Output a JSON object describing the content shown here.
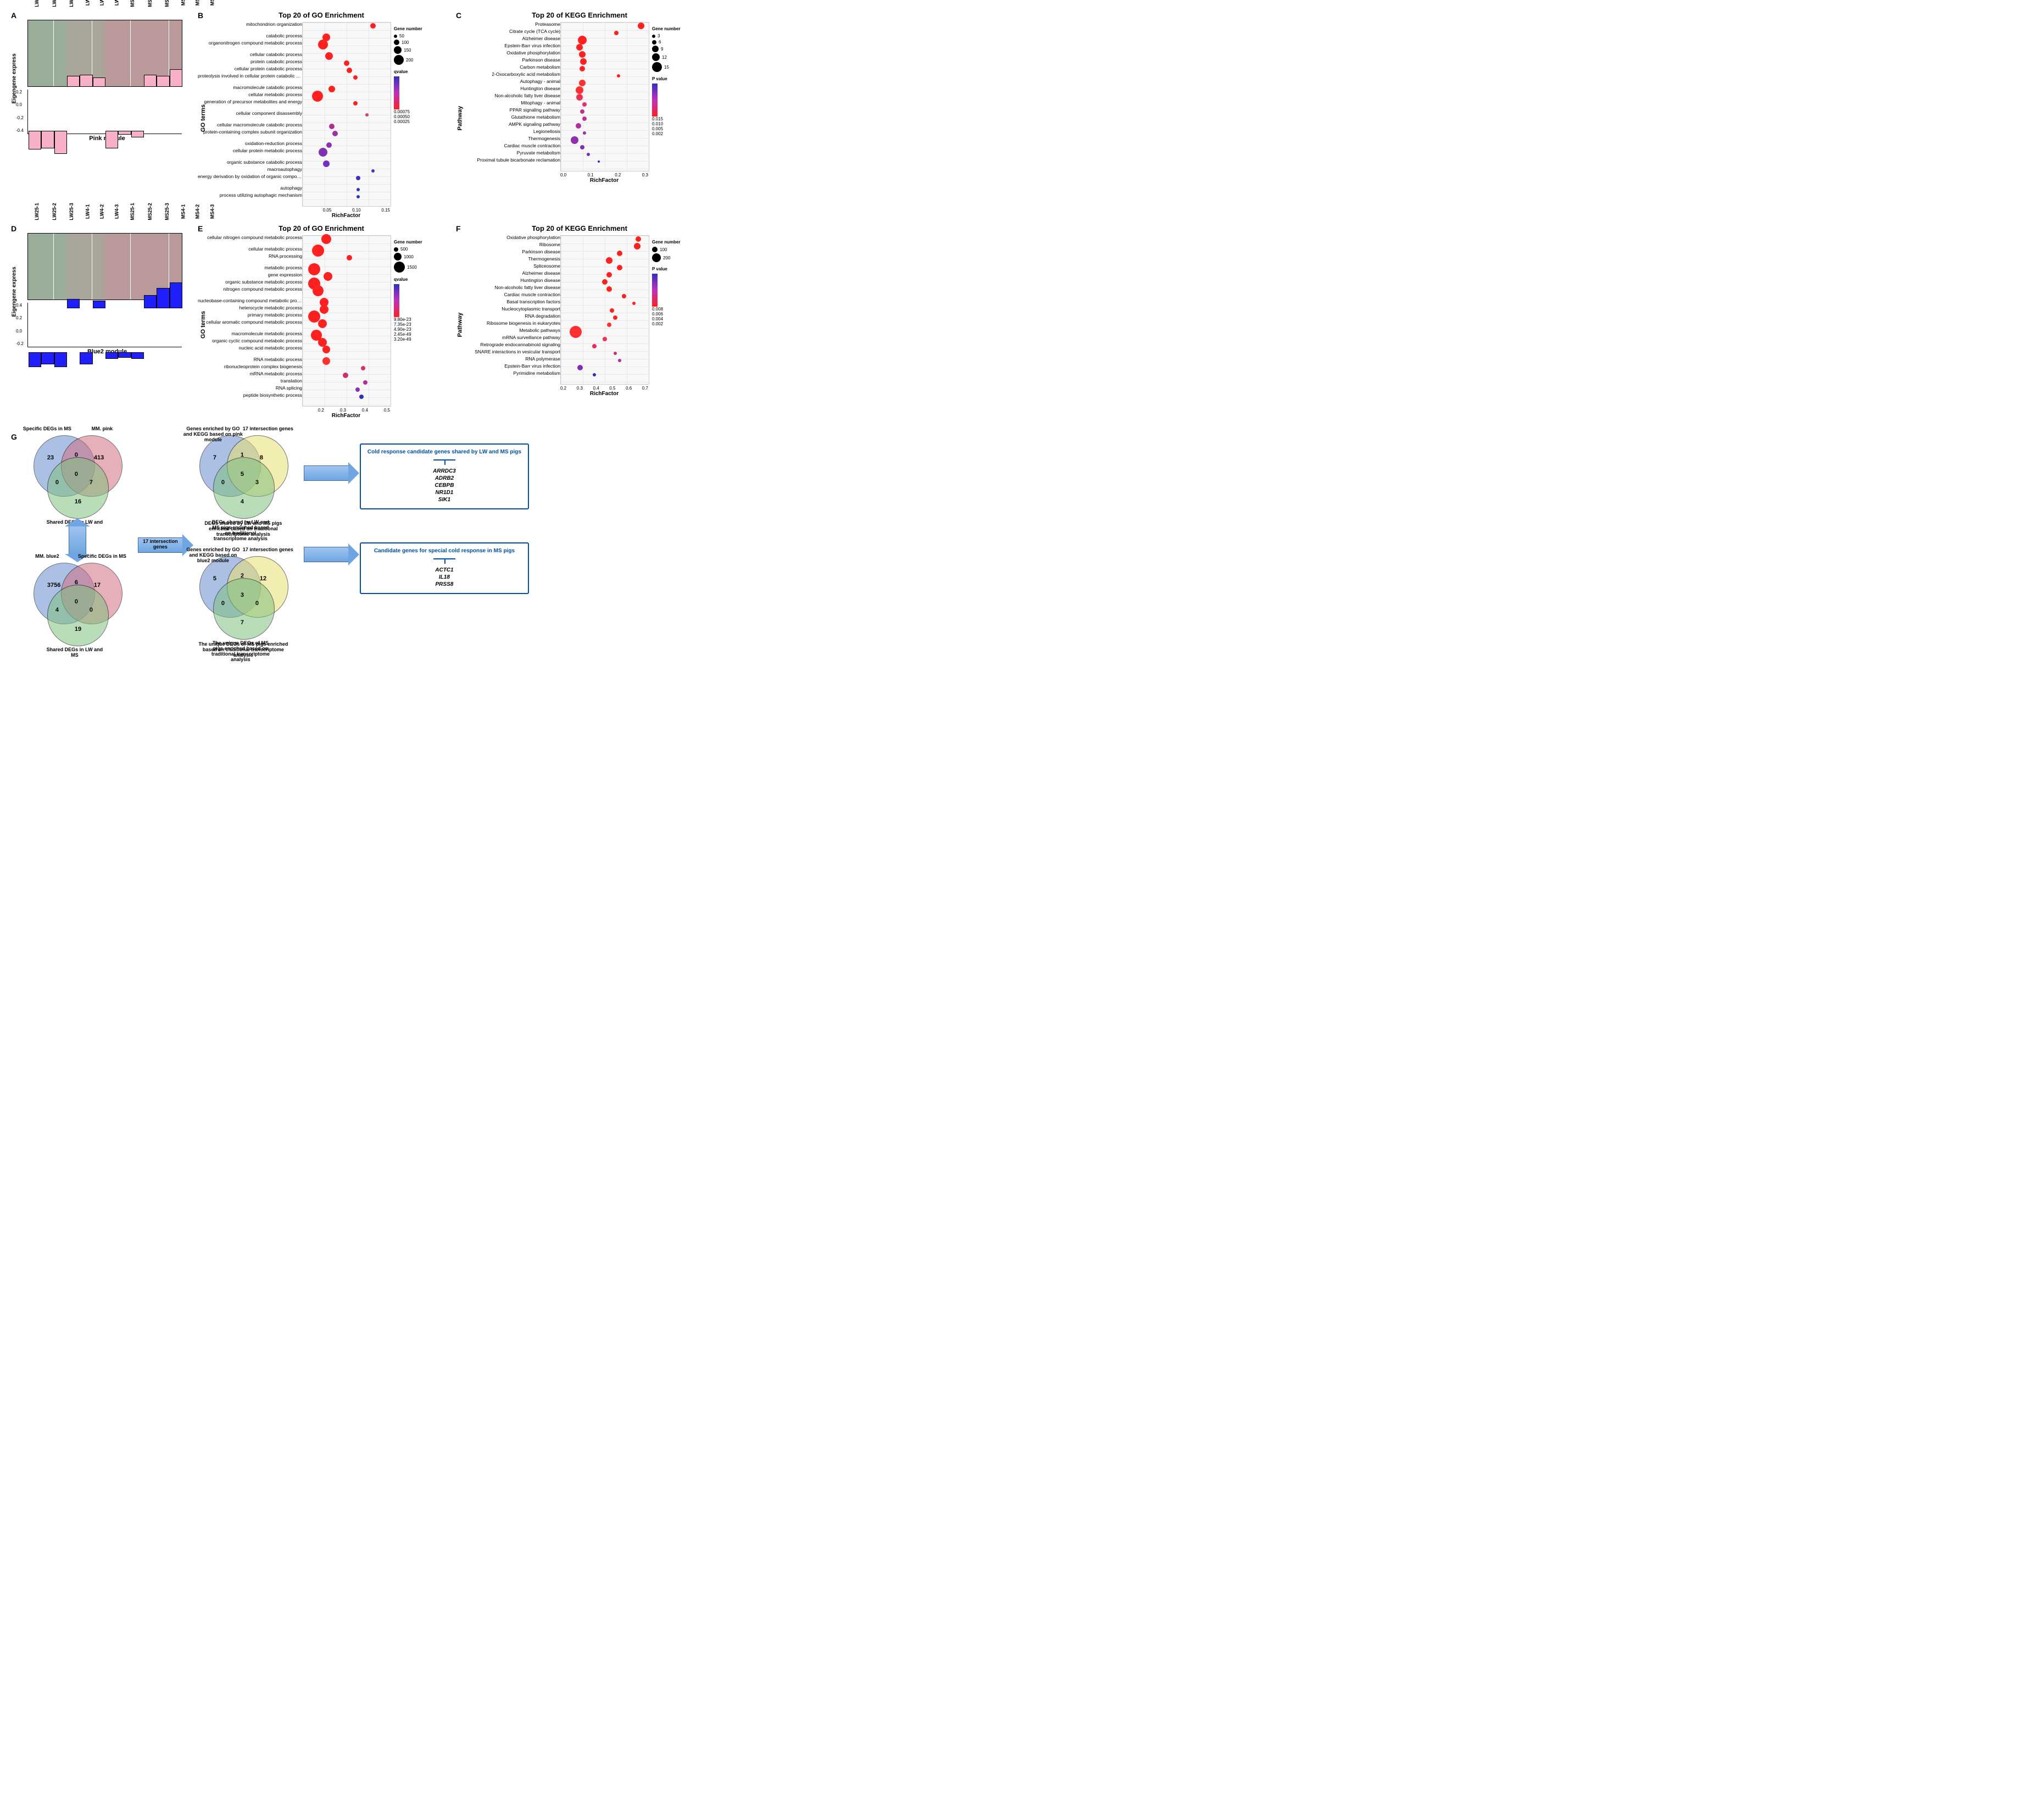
{
  "samples": [
    "LW25-1",
    "LW25-2",
    "LW25-3",
    "LW4-1",
    "LW4-2",
    "LW4-3",
    "MS25-1",
    "MS25-2",
    "MS25-3",
    "MS4-1",
    "MS4-2",
    "MS4-3"
  ],
  "panelA": {
    "label": "A",
    "module_name": "Pink module",
    "heatmap_gradient": "green-black-red",
    "eigen": {
      "ylabel": "Eigengene express",
      "yticks": [
        "-0.4",
        "-0.2",
        "0.0",
        "0.2"
      ],
      "ylim": [
        -0.45,
        0.35
      ],
      "bar_color": "#f8b0c8",
      "values": [
        -0.32,
        -0.3,
        -0.4,
        0.18,
        0.2,
        0.15,
        -0.3,
        -0.05,
        -0.1,
        0.2,
        0.18,
        0.3
      ]
    }
  },
  "panelD": {
    "label": "D",
    "module_name": "Blue2 module",
    "heatmap_gradient": "green-black-red",
    "eigen": {
      "ylabel": "Eigengene express",
      "yticks": [
        "-0.2",
        "0.0",
        "0.2",
        "0.4"
      ],
      "ylim": [
        -0.3,
        0.5
      ],
      "bar_color": "#2020ff",
      "values": [
        -0.25,
        -0.2,
        -0.25,
        0.15,
        -0.2,
        0.12,
        -0.1,
        -0.08,
        -0.1,
        0.22,
        0.35,
        0.45
      ]
    }
  },
  "panelB": {
    "label": "B",
    "title": "Top 20 of GO Enrichment",
    "axis_label": "GO terms",
    "xlabel": "RichFactor",
    "xlim": [
      0,
      0.15
    ],
    "xticks": [
      "",
      "0.05",
      "0.10",
      "0.15"
    ],
    "size_legend": {
      "title": "Gene number",
      "items": [
        {
          "v": "50",
          "s": 3
        },
        {
          "v": "100",
          "s": 5
        },
        {
          "v": "150",
          "s": 7
        },
        {
          "v": "200",
          "s": 9
        }
      ]
    },
    "color_legend": {
      "title": "qvalue",
      "items": [
        "0.00075",
        "0.00050",
        "0.00025"
      ]
    },
    "color_low": "#3030c0",
    "color_high": "#ff2020",
    "terms": [
      {
        "name": "mitochondrion organization",
        "rf": 0.12,
        "size": 5,
        "col": "#ff2020",
        "gap_after": true
      },
      {
        "name": "catabolic process",
        "rf": 0.04,
        "size": 7,
        "col": "#ff2020"
      },
      {
        "name": "organonitrogen compound metabolic process",
        "rf": 0.035,
        "size": 9,
        "col": "#ff2020",
        "gap_after": true
      },
      {
        "name": "cellular catabolic process",
        "rf": 0.045,
        "size": 7,
        "col": "#ff2020"
      },
      {
        "name": "protein catabolic process",
        "rf": 0.075,
        "size": 5,
        "col": "#ff2020"
      },
      {
        "name": "cellular protein catabolic process",
        "rf": 0.08,
        "size": 5,
        "col": "#ff2020"
      },
      {
        "name": "proteolysis involved in cellular protein catabolic process",
        "rf": 0.09,
        "size": 4,
        "col": "#ff2020",
        "gap_after": true
      },
      {
        "name": "macromolecule catabolic process",
        "rf": 0.05,
        "size": 6,
        "col": "#ff2020"
      },
      {
        "name": "cellular metabolic process",
        "rf": 0.025,
        "size": 10,
        "col": "#ff2020"
      },
      {
        "name": "generation of precursor metabolites and energy",
        "rf": 0.09,
        "size": 4,
        "col": "#ff2020",
        "gap_after": true
      },
      {
        "name": "cellular component disassembly",
        "rf": 0.11,
        "size": 3,
        "col": "#d04070",
        "gap_after": true
      },
      {
        "name": "cellular macromolecule catabolic process",
        "rf": 0.05,
        "size": 5,
        "col": "#b03090"
      },
      {
        "name": "protein-containing complex subunit organization",
        "rf": 0.055,
        "size": 5,
        "col": "#a030a0",
        "gap_after": true
      },
      {
        "name": "oxidation-reduction process",
        "rf": 0.045,
        "size": 5,
        "col": "#9030b0"
      },
      {
        "name": "cellular protein metabolic process",
        "rf": 0.035,
        "size": 8,
        "col": "#8030b0",
        "gap_after": true
      },
      {
        "name": "organic substance catabolic process",
        "rf": 0.04,
        "size": 6,
        "col": "#7030c0"
      },
      {
        "name": "macroautophagy",
        "rf": 0.12,
        "size": 3,
        "col": "#5030c0"
      },
      {
        "name": "energy derivation by oxidation of organic compounds",
        "rf": 0.095,
        "size": 4,
        "col": "#4030c0",
        "gap_after": true
      },
      {
        "name": "autophagy",
        "rf": 0.095,
        "size": 3,
        "col": "#3030c0"
      },
      {
        "name": "process utilizing autophagic mechanism",
        "rf": 0.095,
        "size": 3,
        "col": "#3030c0"
      }
    ]
  },
  "panelC": {
    "label": "C",
    "title": "Top 20 of KEGG Enrichment",
    "axis_label": "Pathway",
    "xlabel": "RichFactor",
    "xlim": [
      0,
      0.35
    ],
    "xticks": [
      "0.0",
      "0.1",
      "0.2",
      "0.3"
    ],
    "size_legend": {
      "title": "Gene number",
      "items": [
        {
          "v": "3",
          "s": 3
        },
        {
          "v": "6",
          "s": 4
        },
        {
          "v": "9",
          "s": 6
        },
        {
          "v": "12",
          "s": 7
        },
        {
          "v": "15",
          "s": 9
        }
      ]
    },
    "color_legend": {
      "title": "P value",
      "items": [
        "0.015",
        "0.010",
        "0.005",
        "0.002"
      ]
    },
    "color_low": "#3030c0",
    "color_high": "#ff2020",
    "terms": [
      {
        "name": "Proteasome",
        "rf": 0.32,
        "size": 6,
        "col": "#ff2020"
      },
      {
        "name": "Citrate cycle (TCA cycle)",
        "rf": 0.22,
        "size": 4,
        "col": "#ff2020"
      },
      {
        "name": "Alzheimer disease",
        "rf": 0.085,
        "size": 8,
        "col": "#ff2020"
      },
      {
        "name": "Epstein-Barr virus infection",
        "rf": 0.075,
        "size": 6,
        "col": "#ff2020"
      },
      {
        "name": "Oxidative phosphorylation",
        "rf": 0.085,
        "size": 6,
        "col": "#ff2020"
      },
      {
        "name": "Parkinson disease",
        "rf": 0.09,
        "size": 6,
        "col": "#ff2020"
      },
      {
        "name": "Carbon metabolism",
        "rf": 0.085,
        "size": 5,
        "col": "#ff2020"
      },
      {
        "name": "2-Oxocarboxylic acid metabolism",
        "rf": 0.23,
        "size": 3,
        "col": "#ff2020"
      },
      {
        "name": "Autophagy - animal",
        "rf": 0.085,
        "size": 6,
        "col": "#ff3030"
      },
      {
        "name": "Huntington disease",
        "rf": 0.075,
        "size": 7,
        "col": "#ff3030"
      },
      {
        "name": "Non-alcoholic fatty liver disease",
        "rf": 0.075,
        "size": 6,
        "col": "#f03050"
      },
      {
        "name": "Mitophagy - animal",
        "rf": 0.095,
        "size": 4,
        "col": "#e03070"
      },
      {
        "name": "PPAR signaling pathway",
        "rf": 0.085,
        "size": 4,
        "col": "#c03090"
      },
      {
        "name": "Glutathione metabolism",
        "rf": 0.095,
        "size": 4,
        "col": "#c03090"
      },
      {
        "name": "AMPK signaling pathway",
        "rf": 0.07,
        "size": 5,
        "col": "#b030a0"
      },
      {
        "name": "Legionellosis",
        "rf": 0.095,
        "size": 3,
        "col": "#a030a0"
      },
      {
        "name": "Thermogenesis",
        "rf": 0.055,
        "size": 7,
        "col": "#9030b0"
      },
      {
        "name": "Cardiac muscle contraction",
        "rf": 0.085,
        "size": 4,
        "col": "#8030b0"
      },
      {
        "name": "Pyruvate metabolism",
        "rf": 0.11,
        "size": 3,
        "col": "#7030c0"
      },
      {
        "name": "Proximal tubule bicarbonate reclamation",
        "rf": 0.15,
        "size": 2,
        "col": "#3030c0"
      }
    ]
  },
  "panelE": {
    "label": "E",
    "title": "Top 20 of GO Enrichment",
    "axis_label": "GO terms",
    "xlabel": "RichFactor",
    "xlim": [
      0.1,
      0.55
    ],
    "xticks": [
      "",
      "0.2",
      "0.3",
      "0.4",
      "0.5"
    ],
    "size_legend": {
      "title": "Gene number",
      "items": [
        {
          "v": "500",
          "s": 4
        },
        {
          "v": "1000",
          "s": 7
        },
        {
          "v": "1500",
          "s": 10
        }
      ]
    },
    "color_legend": {
      "title": "qvalue",
      "items": [
        "9.80e-23",
        "7.35e-23",
        "4.90e-23",
        "2.45e-49",
        "3.20e-49"
      ]
    },
    "color_low": "#3030c0",
    "color_high": "#ff2020",
    "terms": [
      {
        "name": "cellular nitrogen compound metabolic process",
        "rf": 0.22,
        "size": 9,
        "col": "#ff2020",
        "gap_after": true
      },
      {
        "name": "cellular metabolic process",
        "rf": 0.18,
        "size": 11,
        "col": "#ff2020"
      },
      {
        "name": "RNA processing",
        "rf": 0.34,
        "size": 5,
        "col": "#ff2020",
        "gap_after": true
      },
      {
        "name": "metabolic process",
        "rf": 0.16,
        "size": 11,
        "col": "#ff2020"
      },
      {
        "name": "gene expression",
        "rf": 0.23,
        "size": 8,
        "col": "#ff2020"
      },
      {
        "name": "organic substance metabolic process",
        "rf": 0.16,
        "size": 11,
        "col": "#ff2020"
      },
      {
        "name": "nitrogen compound metabolic process",
        "rf": 0.18,
        "size": 10,
        "col": "#ff2020",
        "gap_after": true
      },
      {
        "name": "nucleobase-containing compound metabolic process",
        "rf": 0.21,
        "size": 8,
        "col": "#ff2020"
      },
      {
        "name": "heterocycle metabolic process",
        "rf": 0.21,
        "size": 8,
        "col": "#ff2020"
      },
      {
        "name": "primary metabolic process",
        "rf": 0.16,
        "size": 11,
        "col": "#ff2020"
      },
      {
        "name": "cellular aromatic compound metabolic process",
        "rf": 0.2,
        "size": 8,
        "col": "#ff2020",
        "gap_after": true
      },
      {
        "name": "macromolecule metabolic process",
        "rf": 0.17,
        "size": 10,
        "col": "#ff2020"
      },
      {
        "name": "organic cyclic compound metabolic process",
        "rf": 0.2,
        "size": 8,
        "col": "#ff2020"
      },
      {
        "name": "nucleic acid metabolic process",
        "rf": 0.22,
        "size": 7,
        "col": "#ff2020",
        "gap_after": true
      },
      {
        "name": "RNA metabolic process",
        "rf": 0.22,
        "size": 7,
        "col": "#ff3030"
      },
      {
        "name": "ribonucleoprotein complex biogenesis",
        "rf": 0.41,
        "size": 4,
        "col": "#e03060"
      },
      {
        "name": "mRNA metabolic process",
        "rf": 0.32,
        "size": 5,
        "col": "#d03070"
      },
      {
        "name": "translation",
        "rf": 0.42,
        "size": 4,
        "col": "#b03090"
      },
      {
        "name": "RNA splicing",
        "rf": 0.38,
        "size": 4,
        "col": "#9030b0"
      },
      {
        "name": "peptide biosynthetic process",
        "rf": 0.4,
        "size": 4,
        "col": "#3030c0"
      }
    ]
  },
  "panelF": {
    "label": "F",
    "title": "Top 20 of KEGG Enrichment",
    "axis_label": "Pathway",
    "xlabel": "RichFactor",
    "xlim": [
      0.15,
      0.75
    ],
    "xticks": [
      "0.2",
      "0.3",
      "0.4",
      "0.5",
      "0.6",
      "0.7"
    ],
    "size_legend": {
      "title": "Gene number",
      "items": [
        {
          "v": "100",
          "s": 5
        },
        {
          "v": "200",
          "s": 8
        }
      ]
    },
    "color_legend": {
      "title": "P value",
      "items": [
        "0.008",
        "0.006",
        "0.004",
        "0.002"
      ]
    },
    "color_low": "#3030c0",
    "color_high": "#ff2020",
    "terms": [
      {
        "name": "Oxidative phosphorylation",
        "rf": 0.68,
        "size": 5,
        "col": "#ff2020"
      },
      {
        "name": "Ribosome",
        "rf": 0.67,
        "size": 6,
        "col": "#ff2020"
      },
      {
        "name": "Parkinson disease",
        "rf": 0.55,
        "size": 5,
        "col": "#ff2020"
      },
      {
        "name": "Thermogenesis",
        "rf": 0.48,
        "size": 6,
        "col": "#ff2020"
      },
      {
        "name": "Spliceosome",
        "rf": 0.55,
        "size": 5,
        "col": "#ff2020"
      },
      {
        "name": "Alzheimer disease",
        "rf": 0.48,
        "size": 5,
        "col": "#ff2020"
      },
      {
        "name": "Huntington disease",
        "rf": 0.45,
        "size": 5,
        "col": "#ff2020"
      },
      {
        "name": "Non-alcoholic fatty liver disease",
        "rf": 0.48,
        "size": 5,
        "col": "#ff2020"
      },
      {
        "name": "Cardiac muscle contraction",
        "rf": 0.58,
        "size": 4,
        "col": "#ff2020"
      },
      {
        "name": "Basal transcription factors",
        "rf": 0.65,
        "size": 3,
        "col": "#ff2020"
      },
      {
        "name": "Nucleocytoplasmic transport",
        "rf": 0.5,
        "size": 4,
        "col": "#ff2020"
      },
      {
        "name": "RNA degradation",
        "rf": 0.52,
        "size": 4,
        "col": "#ff2020"
      },
      {
        "name": "Ribosome biogenesis in eukaryotes",
        "rf": 0.48,
        "size": 4,
        "col": "#ff3030"
      },
      {
        "name": "Metabolic pathways",
        "rf": 0.25,
        "size": 11,
        "col": "#ff3030"
      },
      {
        "name": "mRNA surveillance pathway",
        "rf": 0.45,
        "size": 4,
        "col": "#f03050"
      },
      {
        "name": "Retrograde endocannabinoid signaling",
        "rf": 0.38,
        "size": 4,
        "col": "#e03060"
      },
      {
        "name": "SNARE interactions in vesicular transport",
        "rf": 0.52,
        "size": 3,
        "col": "#d03070"
      },
      {
        "name": "RNA polymerase",
        "rf": 0.55,
        "size": 3,
        "col": "#b03090"
      },
      {
        "name": "Epstein-Barr virus infection",
        "rf": 0.28,
        "size": 5,
        "col": "#8030b0"
      },
      {
        "name": "Pyrimidine metabolism",
        "rf": 0.38,
        "size": 3,
        "col": "#3030c0"
      }
    ]
  },
  "panelG": {
    "label": "G",
    "venn_top": {
      "labels": {
        "a": "Specific DEGs in MS",
        "b": "MM. pink",
        "c": "Shared DEGs in LW and MS"
      },
      "colors": {
        "a": "#6a8ed0",
        "b": "#d07080",
        "c": "#80c080"
      },
      "counts": {
        "a": 23,
        "b": 413,
        "ab": 0,
        "c": 16,
        "ac": 0,
        "bc": 7,
        "abc": 0
      }
    },
    "venn_bottom": {
      "labels": {
        "a": "MM. blue2",
        "b": "Specific DEGs in MS",
        "c": "Shared DEGs in LW and MS"
      },
      "colors": {
        "a": "#6a8ed0",
        "b": "#d07080",
        "c": "#80c080"
      },
      "counts": {
        "a": 3756,
        "b": 17,
        "ab": 6,
        "c": 19,
        "ac": 4,
        "bc": 0,
        "abc": 0
      }
    },
    "arrow_label": "17 intersection genes",
    "mid_venn_top": {
      "labels": {
        "a": "Genes enriched by GO and KEGG based on pink module",
        "b": "17 intersection genes",
        "c": "DEGs shared by LW and MS pigs enriched based on traditional transcriptome analysis"
      },
      "colors": {
        "a": "#6a8ed0",
        "b": "#e8e070",
        "c": "#80c080"
      },
      "counts": {
        "a": 7,
        "b": 8,
        "ab": 1,
        "c": 4,
        "ac": 0,
        "bc": 3,
        "abc": 5
      }
    },
    "mid_venn_bottom": {
      "labels": {
        "a": "Genes enriched by GO and KEGG based on blue2 module",
        "b": "17 intersection genes",
        "c": "The unique DEGs of MS pigs enriched based on traditional transcriptome analysis"
      },
      "colors": {
        "a": "#6a8ed0",
        "b": "#e8e070",
        "c": "#80c080"
      },
      "counts": {
        "a": 5,
        "b": 12,
        "ab": 2,
        "c": 7,
        "ac": 0,
        "bc": 0,
        "abc": 3
      }
    },
    "gene_box_top": {
      "title": "Cold response candidate genes shared by LW and MS pigs",
      "genes": [
        "ARRDC3",
        "ADRB2",
        "CEBPB",
        "NR1D1",
        "SIK1"
      ]
    },
    "gene_box_bottom": {
      "title": "Candidate genes for special cold response in MS pigs",
      "genes": [
        "ACTC1",
        "IL18",
        "PRSS8"
      ]
    }
  }
}
